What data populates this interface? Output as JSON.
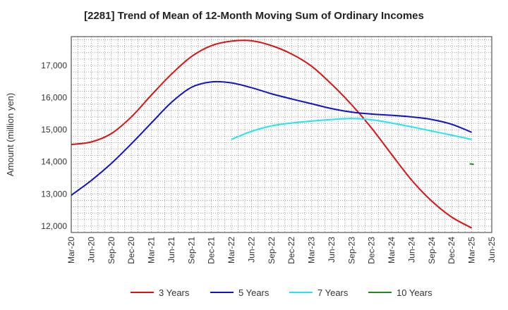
{
  "chart_data": {
    "type": "line",
    "title": "[2281]  Trend of Mean of 12-Month Moving Sum of Ordinary Incomes",
    "xlabel": "",
    "ylabel": "Amount (million yen)",
    "ylim": [
      11800,
      17900
    ],
    "yticks": [
      12000,
      13000,
      14000,
      15000,
      16000,
      17000
    ],
    "ytick_labels": [
      "12,000",
      "13,000",
      "14,000",
      "15,000",
      "16,000",
      "17,000"
    ],
    "categories": [
      "Mar-20",
      "Jun-20",
      "Sep-20",
      "Dec-20",
      "Mar-21",
      "Jun-21",
      "Sep-21",
      "Dec-21",
      "Mar-22",
      "Jun-22",
      "Sep-22",
      "Dec-22",
      "Mar-23",
      "Jun-23",
      "Sep-23",
      "Dec-23",
      "Mar-24",
      "Jun-24",
      "Sep-24",
      "Dec-24",
      "Mar-25",
      "Jun-25"
    ],
    "grid": true,
    "legend_position": "bottom",
    "series": [
      {
        "name": "3 Years",
        "color": "#dd1111",
        "values": [
          14540,
          14620,
          14880,
          15400,
          16080,
          16730,
          17280,
          17620,
          17760,
          17770,
          17620,
          17360,
          16980,
          16420,
          15780,
          15050,
          14230,
          13430,
          12780,
          12280,
          11940,
          null
        ]
      },
      {
        "name": "5 Years",
        "color": "#1111cc",
        "values": [
          12960,
          13420,
          13950,
          14560,
          15210,
          15850,
          16320,
          16490,
          16460,
          16310,
          16120,
          15960,
          15810,
          15660,
          15550,
          15490,
          15450,
          15400,
          15320,
          15170,
          14920,
          null
        ]
      },
      {
        "name": "7 Years",
        "color": "#22e5ee",
        "values": [
          null,
          null,
          null,
          null,
          null,
          null,
          null,
          null,
          14700,
          14950,
          15120,
          15210,
          15270,
          15320,
          15350,
          15310,
          15210,
          15090,
          14960,
          14830,
          14700,
          null
        ]
      },
      {
        "name": "10 Years",
        "color": "#228822",
        "values": [
          null,
          null,
          null,
          null,
          null,
          null,
          null,
          null,
          null,
          null,
          null,
          null,
          null,
          null,
          null,
          null,
          null,
          null,
          null,
          null,
          13920,
          null
        ]
      }
    ]
  }
}
